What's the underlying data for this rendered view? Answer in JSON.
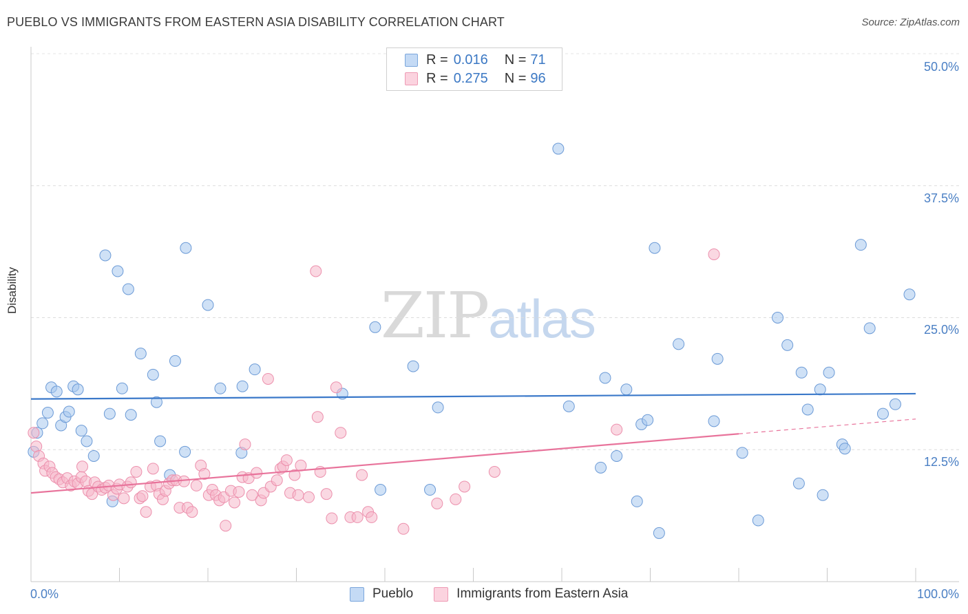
{
  "title": "PUEBLO VS IMMIGRANTS FROM EASTERN ASIA DISABILITY CORRELATION CHART",
  "source": "Source: ZipAtlas.com",
  "watermark": {
    "zip": "ZIP",
    "atlas": "atlas"
  },
  "legend": {
    "rows": [
      {
        "r_label": "R =",
        "r_value": "0.016",
        "n_label": "N =",
        "n_value": "71",
        "color": "#a8c8ef"
      },
      {
        "r_label": "R =",
        "r_value": "0.275",
        "n_label": "N =",
        "n_value": "96",
        "color": "#f6b8cb"
      }
    ]
  },
  "bottom_legend": [
    {
      "label": "Pueblo",
      "color": "#a8c8ef"
    },
    {
      "label": "Immigrants from Eastern Asia",
      "color": "#f6b8cb"
    }
  ],
  "y_ticks": [
    "50.0%",
    "37.5%",
    "25.0%",
    "12.5%"
  ],
  "x_ticks": [
    "0.0%",
    "100.0%"
  ],
  "chart_data": {
    "type": "scatter",
    "title": "PUEBLO VS IMMIGRANTS FROM EASTERN ASIA DISABILITY CORRELATION CHART",
    "xlabel": "",
    "ylabel": "Disability",
    "xlim": [
      0,
      100
    ],
    "ylim": [
      0,
      50
    ],
    "grid": true,
    "legend_position": "top-center",
    "series": [
      {
        "name": "Pueblo",
        "color": "#a8c8ef",
        "stroke": "#6b9ad6",
        "trend_color": "#3a78c9",
        "trend": {
          "x": [
            0,
            100
          ],
          "y": [
            17.3,
            17.8
          ]
        },
        "points": [
          [
            0.3,
            12.3
          ],
          [
            0.7,
            14.1
          ],
          [
            1.3,
            15.0
          ],
          [
            1.9,
            16.0
          ],
          [
            2.3,
            18.4
          ],
          [
            2.9,
            18.0
          ],
          [
            3.4,
            14.8
          ],
          [
            3.9,
            15.6
          ],
          [
            4.3,
            16.1
          ],
          [
            4.8,
            18.5
          ],
          [
            5.3,
            18.2
          ],
          [
            5.7,
            14.3
          ],
          [
            6.3,
            13.3
          ],
          [
            7.1,
            11.9
          ],
          [
            8.4,
            30.9
          ],
          [
            8.9,
            15.9
          ],
          [
            9.2,
            7.6
          ],
          [
            9.8,
            29.4
          ],
          [
            10.3,
            18.3
          ],
          [
            11.0,
            27.7
          ],
          [
            11.3,
            15.8
          ],
          [
            12.4,
            21.6
          ],
          [
            13.8,
            19.6
          ],
          [
            14.2,
            17.0
          ],
          [
            14.6,
            13.3
          ],
          [
            15.7,
            10.1
          ],
          [
            16.3,
            20.9
          ],
          [
            17.4,
            12.3
          ],
          [
            17.5,
            31.6
          ],
          [
            20.0,
            26.2
          ],
          [
            21.4,
            18.3
          ],
          [
            23.8,
            12.2
          ],
          [
            23.9,
            18.5
          ],
          [
            25.3,
            20.1
          ],
          [
            35.2,
            17.8
          ],
          [
            38.9,
            24.1
          ],
          [
            39.5,
            8.7
          ],
          [
            43.2,
            20.4
          ],
          [
            45.1,
            8.7
          ],
          [
            46.0,
            16.5
          ],
          [
            59.6,
            41.0
          ],
          [
            60.8,
            16.6
          ],
          [
            64.4,
            10.8
          ],
          [
            64.9,
            19.3
          ],
          [
            66.2,
            11.9
          ],
          [
            67.3,
            18.2
          ],
          [
            68.5,
            7.6
          ],
          [
            69.0,
            14.9
          ],
          [
            69.7,
            15.3
          ],
          [
            70.5,
            31.6
          ],
          [
            71.0,
            4.6
          ],
          [
            73.2,
            22.5
          ],
          [
            77.2,
            15.2
          ],
          [
            77.6,
            21.1
          ],
          [
            80.4,
            12.2
          ],
          [
            82.2,
            5.8
          ],
          [
            84.4,
            25.0
          ],
          [
            85.5,
            22.4
          ],
          [
            86.8,
            9.3
          ],
          [
            87.1,
            19.8
          ],
          [
            87.8,
            16.3
          ],
          [
            89.2,
            18.2
          ],
          [
            89.5,
            8.2
          ],
          [
            90.2,
            19.8
          ],
          [
            91.7,
            13.0
          ],
          [
            92.0,
            12.6
          ],
          [
            93.8,
            31.9
          ],
          [
            94.8,
            24.0
          ],
          [
            96.3,
            15.9
          ],
          [
            97.7,
            16.8
          ],
          [
            99.3,
            27.2
          ]
        ]
      },
      {
        "name": "Immigrants from Eastern Asia",
        "color": "#f6b8cb",
        "stroke": "#ec8fac",
        "trend_color": "#e8739b",
        "trend": {
          "x": [
            0,
            80
          ],
          "y": [
            8.4,
            14.0
          ]
        },
        "trend_dashed": {
          "x": [
            80,
            100
          ],
          "y": [
            14.0,
            15.4
          ]
        },
        "points": [
          [
            0.3,
            14.1
          ],
          [
            0.6,
            12.8
          ],
          [
            0.9,
            11.9
          ],
          [
            1.4,
            11.2
          ],
          [
            1.6,
            10.5
          ],
          [
            2.1,
            10.9
          ],
          [
            2.4,
            10.3
          ],
          [
            2.8,
            9.9
          ],
          [
            3.2,
            9.7
          ],
          [
            3.6,
            9.4
          ],
          [
            4.1,
            9.8
          ],
          [
            4.5,
            9.1
          ],
          [
            4.9,
            9.5
          ],
          [
            5.3,
            9.3
          ],
          [
            5.7,
            9.9
          ],
          [
            5.8,
            10.9
          ],
          [
            6.2,
            9.5
          ],
          [
            6.5,
            8.6
          ],
          [
            6.9,
            8.3
          ],
          [
            7.2,
            9.4
          ],
          [
            7.6,
            9.0
          ],
          [
            8.0,
            8.7
          ],
          [
            8.4,
            8.9
          ],
          [
            8.8,
            9.1
          ],
          [
            9.3,
            8.2
          ],
          [
            9.7,
            8.8
          ],
          [
            10.0,
            9.2
          ],
          [
            10.5,
            7.9
          ],
          [
            10.9,
            9.0
          ],
          [
            11.3,
            9.4
          ],
          [
            11.9,
            10.4
          ],
          [
            12.3,
            7.9
          ],
          [
            12.6,
            8.1
          ],
          [
            13.0,
            6.6
          ],
          [
            13.5,
            9.0
          ],
          [
            13.8,
            10.7
          ],
          [
            14.2,
            9.1
          ],
          [
            14.5,
            8.3
          ],
          [
            14.9,
            7.8
          ],
          [
            15.2,
            8.6
          ],
          [
            15.6,
            9.3
          ],
          [
            16.0,
            9.6
          ],
          [
            16.4,
            9.6
          ],
          [
            16.8,
            7.0
          ],
          [
            17.3,
            9.5
          ],
          [
            17.7,
            7.0
          ],
          [
            18.2,
            6.6
          ],
          [
            18.7,
            9.1
          ],
          [
            19.2,
            11.0
          ],
          [
            19.6,
            10.2
          ],
          [
            20.1,
            8.2
          ],
          [
            20.5,
            8.7
          ],
          [
            20.9,
            8.2
          ],
          [
            21.3,
            7.7
          ],
          [
            21.8,
            8.0
          ],
          [
            22.0,
            5.3
          ],
          [
            22.6,
            8.6
          ],
          [
            23.0,
            7.5
          ],
          [
            23.5,
            8.5
          ],
          [
            23.9,
            9.9
          ],
          [
            24.2,
            13.0
          ],
          [
            24.6,
            9.8
          ],
          [
            25.0,
            8.2
          ],
          [
            25.5,
            10.3
          ],
          [
            26.0,
            7.7
          ],
          [
            26.3,
            8.4
          ],
          [
            26.8,
            19.2
          ],
          [
            27.1,
            9.0
          ],
          [
            27.8,
            9.6
          ],
          [
            28.2,
            10.7
          ],
          [
            28.5,
            10.9
          ],
          [
            28.9,
            11.5
          ],
          [
            29.3,
            8.4
          ],
          [
            29.8,
            10.1
          ],
          [
            30.2,
            8.2
          ],
          [
            30.5,
            11.0
          ],
          [
            31.4,
            8.0
          ],
          [
            32.2,
            29.4
          ],
          [
            32.4,
            15.6
          ],
          [
            32.7,
            10.4
          ],
          [
            33.4,
            8.3
          ],
          [
            34.0,
            6.0
          ],
          [
            34.5,
            18.4
          ],
          [
            35.0,
            14.1
          ],
          [
            36.1,
            6.1
          ],
          [
            36.9,
            6.1
          ],
          [
            37.4,
            10.1
          ],
          [
            38.1,
            6.6
          ],
          [
            38.5,
            6.1
          ],
          [
            42.1,
            5.0
          ],
          [
            45.9,
            7.4
          ],
          [
            48.0,
            7.8
          ],
          [
            49.0,
            9.0
          ],
          [
            52.4,
            10.4
          ],
          [
            77.2,
            31.0
          ],
          [
            66.2,
            14.4
          ]
        ]
      }
    ]
  }
}
